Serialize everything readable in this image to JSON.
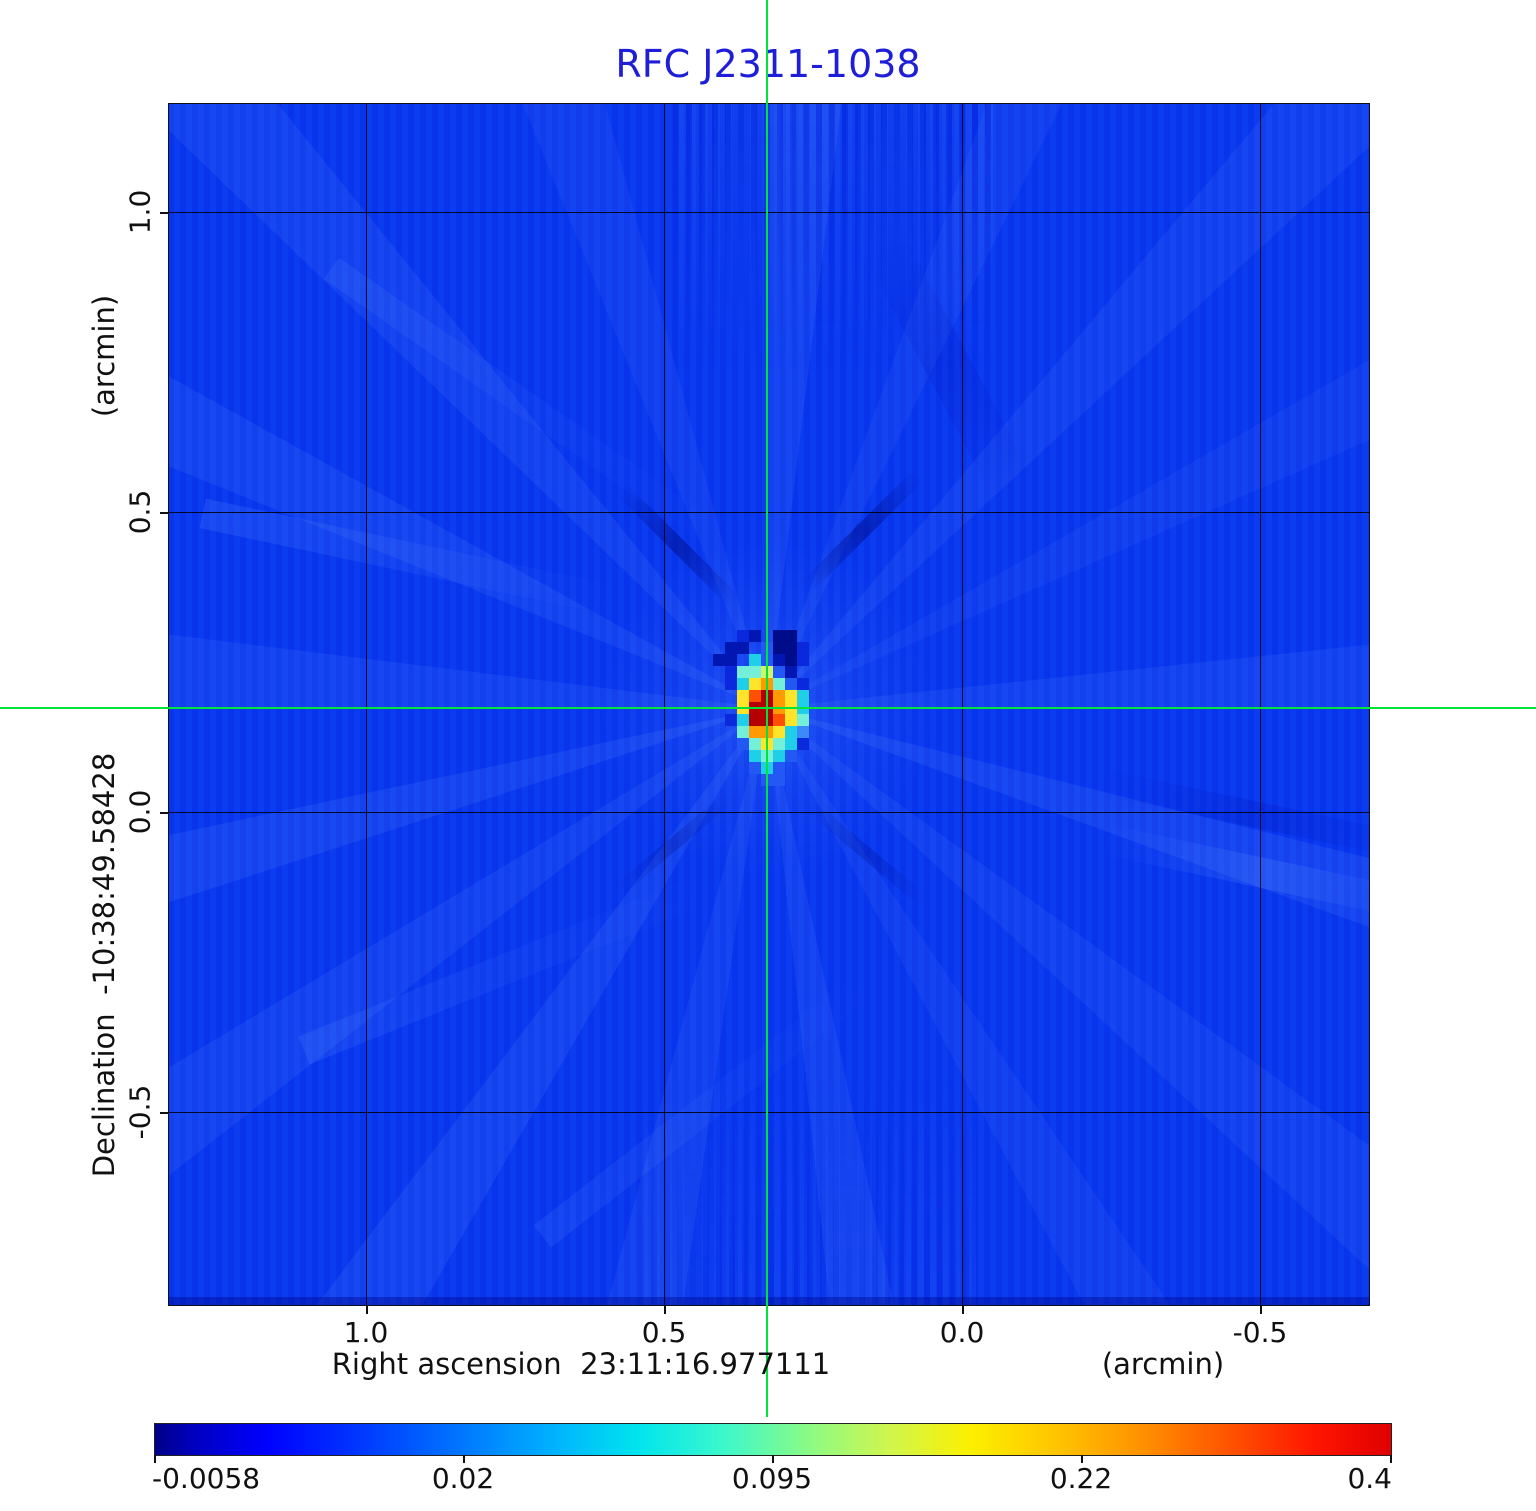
{
  "chart_data": {
    "type": "heatmap",
    "title": "RFC J2311-1038",
    "x_axis": {
      "label": "Right ascension  23:11:16.977111",
      "unit": "(arcmin)",
      "ticks": [
        "1.0",
        "0.5",
        "0.0",
        "-0.5"
      ]
    },
    "y_axis": {
      "label": "Declination  -10:38:49.58428",
      "unit": "(arcmin)",
      "ticks": [
        "1.0",
        "0.5",
        "0.0",
        "-0.5"
      ]
    },
    "colorbar": {
      "tick_labels": [
        "-0.0058",
        "0.02",
        "0.095",
        "0.22",
        "0.4"
      ]
    },
    "crosshair": {
      "ra": "23:11:16.977111",
      "dec": "-10:38:49.58428"
    },
    "source_matrix": [
      "....dD.KK....",
      "...DD.lKKd...",
      "..DD.clDKd...",
      "...dCCglD....",
      "...dcyoCld...",
      "....yORoyc...",
      "....yRRoyc...",
      "...dcRROyC...",
      "....CooycL...",
      "....lCyCcd...",
      ".....cCcl....",
      ".....lcl.....",
      "......ll....."
    ],
    "palette": {
      "d": "#0a28dc",
      "D": "#0217b2",
      "K": "#000d8a",
      "l": "#2458f4",
      "L": "#3c8af8",
      "c": "#1fcfe8",
      "C": "#74f0d8",
      "g": "#cdf66e",
      "y": "#ffe42a",
      "o": "#ff9b00",
      "O": "#ff5000",
      "R": "#b40000"
    },
    "colors": {
      "background": "#0837ef",
      "title": "#1e1ed8",
      "crosshair": "#00e23c",
      "grid": "#000000"
    }
  }
}
